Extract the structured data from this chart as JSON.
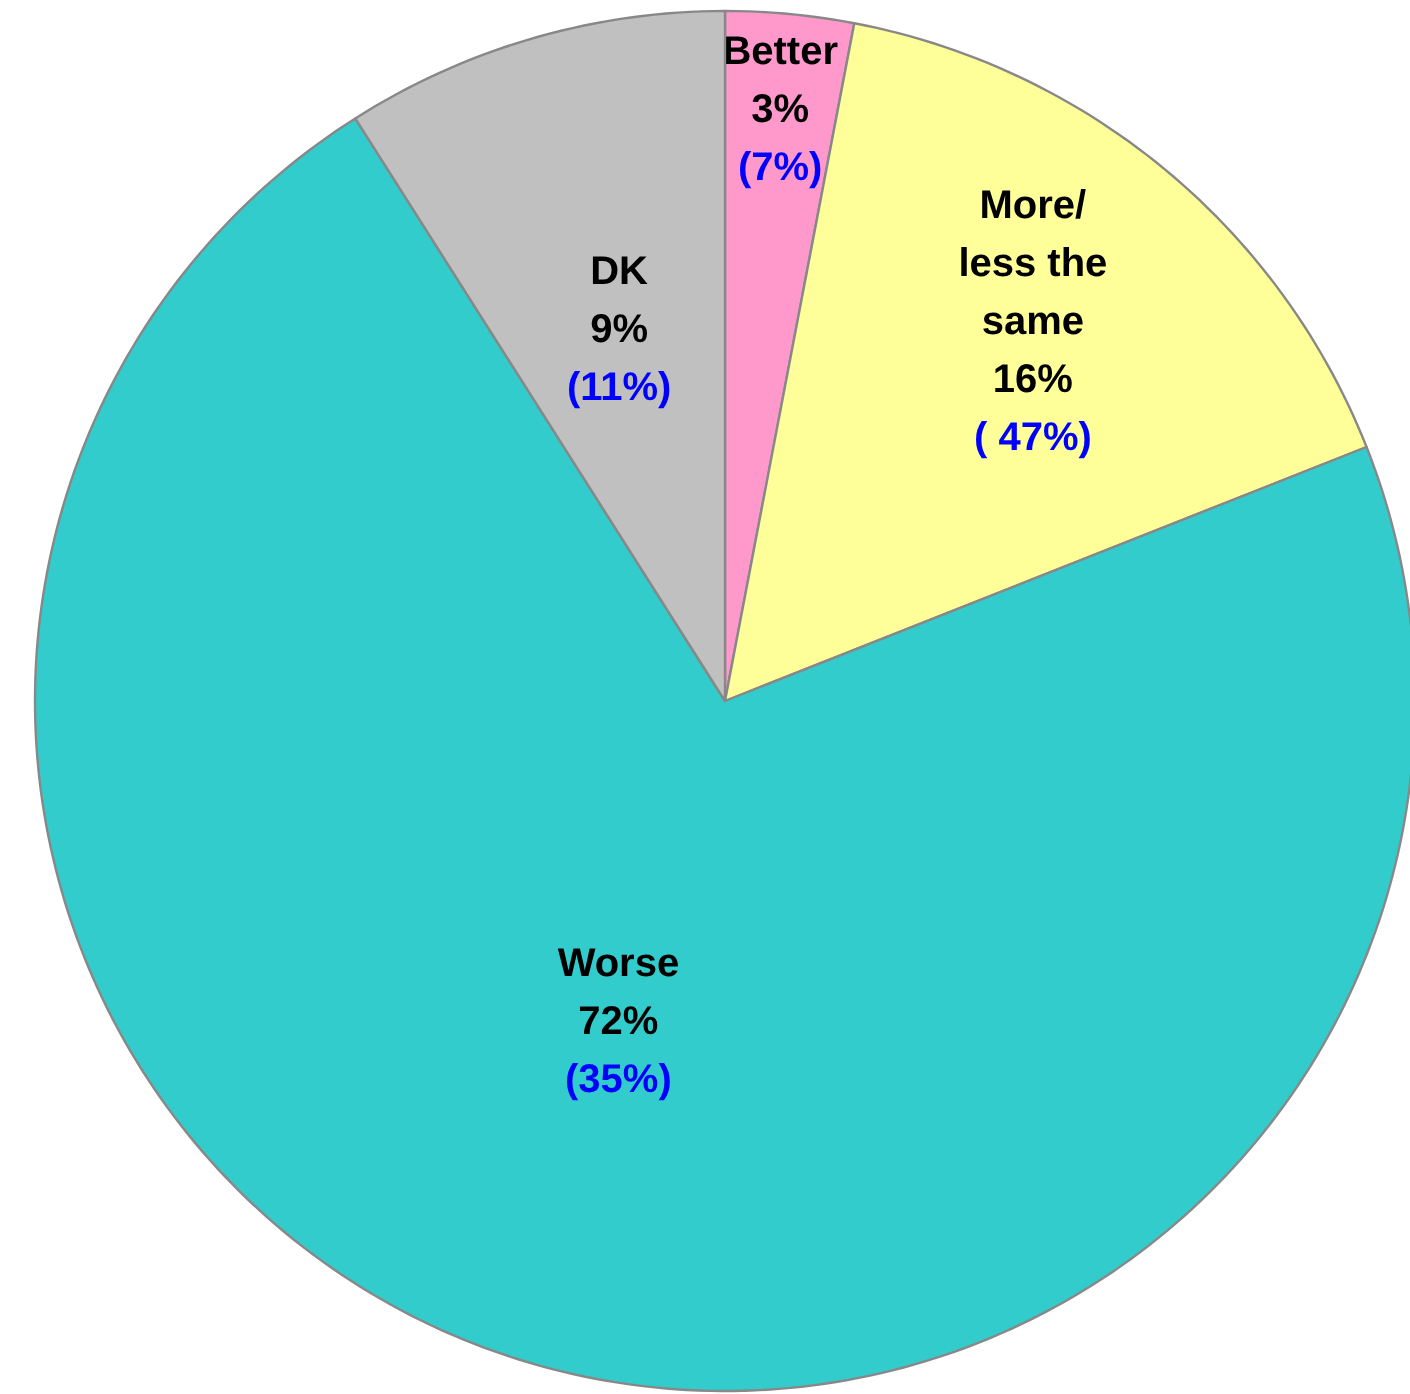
{
  "chart_data": {
    "type": "pie",
    "categories": [
      "Better",
      "More/ less the same",
      "Worse",
      "DK"
    ],
    "values": [
      3,
      16,
      72,
      9
    ],
    "colors": [
      "#ff99cc",
      "#ffff99",
      "#33cccc",
      "#c0c0c0"
    ],
    "value_labels": [
      "3%",
      "16%",
      "72%",
      "9%"
    ],
    "annotations": [
      "(7%)",
      "( 47%)",
      "(35%)",
      "(11%)"
    ]
  }
}
